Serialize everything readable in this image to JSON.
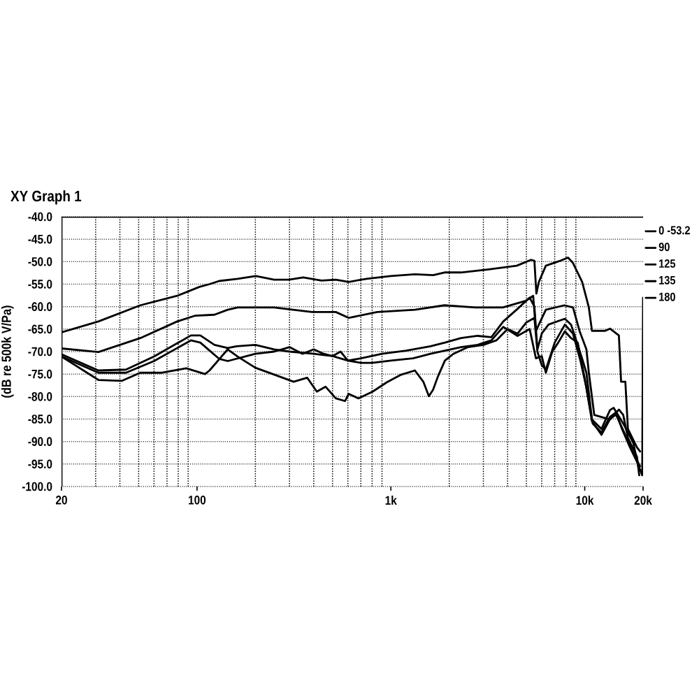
{
  "chart_data": {
    "type": "line",
    "title": "XY Graph 1",
    "ylabel": "(dB re 500k V/Pa)",
    "log": "x",
    "grid": true,
    "legend": "top right",
    "line_style": "solid",
    "xlim": [
      20,
      20000
    ],
    "xticks": [
      20,
      {
        "value": 30,
        "label": null
      },
      {
        "value": 40,
        "label": null
      },
      {
        "value": 50,
        "label": null
      },
      {
        "value": 60,
        "label": null
      },
      {
        "value": 70,
        "label": null
      },
      {
        "value": 80,
        "label": null
      },
      {
        "value": 90,
        "label": null
      },
      100,
      {
        "value": 200,
        "label": null
      },
      {
        "value": 300,
        "label": null
      },
      {
        "value": 400,
        "label": null
      },
      {
        "value": 500,
        "label": null
      },
      {
        "value": 600,
        "label": null
      },
      {
        "value": 700,
        "label": null
      },
      {
        "value": 800,
        "label": null
      },
      {
        "value": 900,
        "label": null
      },
      {
        "value": 1000,
        "label": "1k"
      },
      {
        "value": 2000,
        "label": null
      },
      {
        "value": 3000,
        "label": null
      },
      {
        "value": 4000,
        "label": null
      },
      {
        "value": 5000,
        "label": null
      },
      {
        "value": 6000,
        "label": null
      },
      {
        "value": 7000,
        "label": null
      },
      {
        "value": 8000,
        "label": null
      },
      {
        "value": 9000,
        "label": null
      },
      {
        "value": 10000,
        "label": "10k"
      },
      {
        "value": 20000,
        "label": "20k"
      }
    ],
    "ylim": [
      -100,
      -40
    ],
    "yticks": [
      {
        "value": -40,
        "label": "-40.0"
      },
      {
        "value": -45,
        "label": "-45.0"
      },
      {
        "value": -50,
        "label": "-50.0"
      },
      {
        "value": -55,
        "label": "-55.0"
      },
      {
        "value": -60,
        "label": "-60.0"
      },
      {
        "value": -65,
        "label": "-65.0"
      },
      {
        "value": -70,
        "label": "-70.0"
      },
      {
        "value": -75,
        "label": "-75.0"
      },
      {
        "value": -80,
        "label": "-80.0"
      },
      {
        "value": -85,
        "label": "-85.0"
      },
      {
        "value": -90,
        "label": "-90.0"
      },
      {
        "value": -95,
        "label": "-95.0"
      },
      {
        "value": -100,
        "label": "-100.0"
      }
    ],
    "series": [
      {
        "name": "0 -53.2",
        "color": "#000000",
        "x": [
          20,
          31,
          51,
          79,
          103,
          116,
          130,
          162,
          201,
          250,
          298,
          353,
          439,
          520,
          606,
          750,
          1000,
          1330,
          1654,
          1890,
          2300,
          3200,
          4460,
          5280,
          5500,
          5630,
          5800,
          6300,
          7370,
          8200,
          8700,
          9700,
          10500,
          10900,
          12700,
          13500,
          15000,
          15400,
          16200,
          16700,
          18600,
          19300
        ],
        "values": [
          -65.7,
          -63.3,
          -59.7,
          -57.6,
          -55.6,
          -55.0,
          -54.3,
          -53.8,
          -53.2,
          -54.0,
          -54.0,
          -53.5,
          -54.2,
          -54.0,
          -54.5,
          -53.8,
          -53.2,
          -52.8,
          -53.0,
          -52.4,
          -52.4,
          -51.7,
          -50.9,
          -49.6,
          -49.8,
          -57.1,
          -54.5,
          -50.9,
          -49.9,
          -49.1,
          -50.3,
          -54.5,
          -60.2,
          -65.4,
          -65.4,
          -64.9,
          -66.4,
          -76.7,
          -76.7,
          -87.2,
          -91.3,
          -92.2
        ]
      },
      {
        "name": "90",
        "color": "#000000",
        "x": [
          20,
          31,
          51,
          79,
          98,
          123,
          144,
          162,
          250,
          392,
          520,
          606,
          850,
          1330,
          1890,
          2730,
          3780,
          4960,
          5420,
          5600,
          6300,
          7860,
          8700,
          9400,
          10200,
          10500,
          11200,
          13500,
          15000,
          15800,
          16700,
          18600,
          19100
        ],
        "values": [
          -69.3,
          -70.1,
          -67.0,
          -63.3,
          -62.0,
          -61.8,
          -60.7,
          -60.2,
          -60.2,
          -61.2,
          -61.2,
          -62.5,
          -61.2,
          -60.7,
          -59.7,
          -60.2,
          -60.2,
          -58.7,
          -57.6,
          -65.4,
          -60.7,
          -59.7,
          -60.2,
          -65.4,
          -69.5,
          -74.7,
          -84.1,
          -85.1,
          -82.9,
          -84.1,
          -89.2,
          -93.4,
          -97.5
        ]
      },
      {
        "name": "125",
        "color": "#000000",
        "x": [
          20,
          31,
          43,
          60,
          93,
          104,
          123,
          144,
          160,
          200,
          250,
          300,
          400,
          500,
          600,
          700,
          900,
          1200,
          1600,
          1900,
          2300,
          2800,
          3300,
          3800,
          4500,
          5200,
          5500,
          5700,
          6000,
          6500,
          7000,
          7900,
          8500,
          9200,
          9700,
          10200,
          10900,
          12200,
          13500,
          14100,
          15800,
          17800,
          19100
        ],
        "values": [
          -70.6,
          -74.2,
          -74.0,
          -71.1,
          -66.4,
          -66.4,
          -68.5,
          -69.2,
          -68.8,
          -68.5,
          -69.5,
          -70.0,
          -70.5,
          -71.0,
          -72.0,
          -71.5,
          -70.5,
          -69.8,
          -68.8,
          -68.0,
          -67.0,
          -66.5,
          -66.8,
          -63.3,
          -60.5,
          -58.0,
          -60.0,
          -69.5,
          -66.0,
          -64.0,
          -63.5,
          -62.7,
          -64.0,
          -68.5,
          -71.6,
          -74.7,
          -85.1,
          -87.2,
          -83.0,
          -82.5,
          -86.0,
          -90.3,
          -96.5
        ]
      },
      {
        "name": "135",
        "color": "#000000",
        "x": [
          20,
          31,
          43,
          60,
          93,
          104,
          130,
          144,
          200,
          250,
          300,
          350,
          400,
          450,
          500,
          550,
          600,
          700,
          800,
          1000,
          1300,
          1600,
          1900,
          2300,
          2800,
          3300,
          3800,
          4500,
          5200,
          5600,
          6000,
          6300,
          6800,
          7300,
          7900,
          8500,
          9200,
          10000,
          10900,
          12200,
          13500,
          14500,
          15800,
          17500,
          19300
        ],
        "values": [
          -71.1,
          -74.7,
          -74.7,
          -72.1,
          -67.5,
          -68.0,
          -71.6,
          -72.1,
          -70.5,
          -70.0,
          -69.0,
          -70.5,
          -69.5,
          -70.5,
          -71.0,
          -70.0,
          -72.0,
          -72.5,
          -72.5,
          -72.0,
          -71.5,
          -70.5,
          -69.8,
          -69.0,
          -68.5,
          -67.5,
          -64.5,
          -66.5,
          -65.0,
          -71.5,
          -71.0,
          -74.7,
          -70.0,
          -68.0,
          -65.5,
          -67.0,
          -68.0,
          -76.0,
          -85.5,
          -88.5,
          -85.0,
          -84.0,
          -87.5,
          -92.0,
          -95.5
        ]
      },
      {
        "name": "180",
        "color": "#000000",
        "x": [
          20,
          31,
          41,
          51,
          66,
          88,
          110,
          116,
          144,
          162,
          200,
          250,
          315,
          370,
          415,
          460,
          520,
          580,
          606,
          680,
          805,
          955,
          1120,
          1330,
          1470,
          1570,
          1650,
          1750,
          1900,
          2100,
          2500,
          3000,
          3500,
          4000,
          4500,
          5000,
          5500,
          5700,
          6000,
          6300,
          7000,
          7900,
          8700,
          9500,
          10200,
          11000,
          12200,
          13500,
          14500,
          15500,
          17000,
          18600,
          19800,
          20000
        ],
        "values": [
          -71.1,
          -76.3,
          -76.5,
          -74.7,
          -74.7,
          -73.7,
          -75.0,
          -74.2,
          -69.5,
          -71.1,
          -73.6,
          -75.1,
          -76.7,
          -75.8,
          -78.9,
          -77.8,
          -80.4,
          -81.0,
          -79.4,
          -80.4,
          -78.9,
          -76.8,
          -75.2,
          -74.2,
          -76.7,
          -79.9,
          -78.5,
          -75.5,
          -72.0,
          -70.5,
          -69.0,
          -68.5,
          -67.5,
          -65.0,
          -66.0,
          -63.5,
          -62.5,
          -70.0,
          -73.0,
          -74.0,
          -68.0,
          -64.0,
          -66.0,
          -72.0,
          -78.0,
          -86.0,
          -88.0,
          -84.5,
          -83.5,
          -87.0,
          -91.0,
          -94.5,
          -97.5,
          -58.0
        ]
      }
    ]
  }
}
